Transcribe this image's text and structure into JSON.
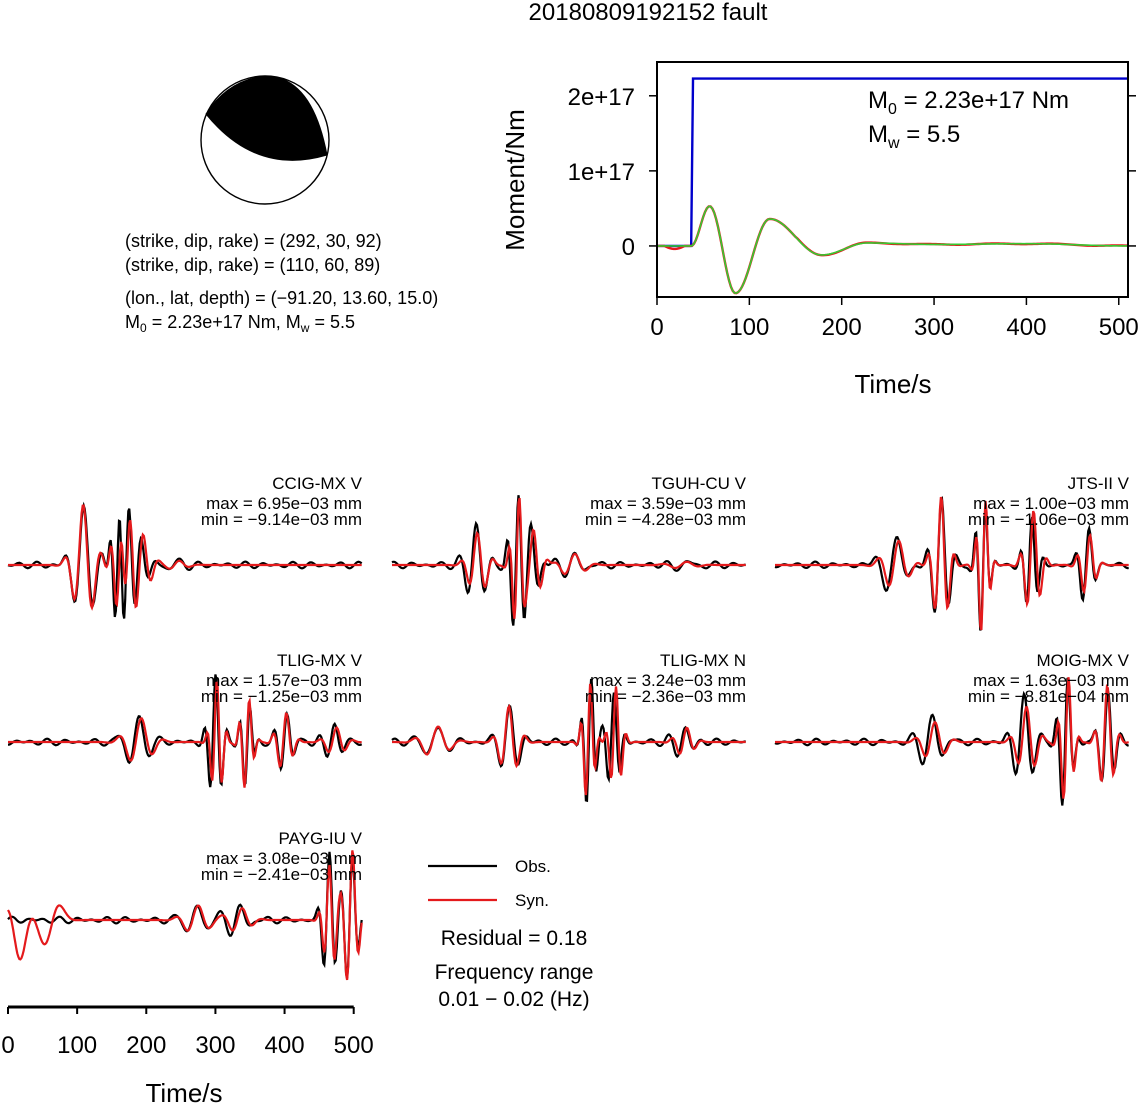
{
  "title": "20180809192152 fault",
  "focal": {
    "strike_dip_rake_1": "(strike, dip, rake) = (292, 30, 92)",
    "strike_dip_rake_2": "(strike, dip, rake) = (110, 60, 89)",
    "location": "(lon., lat, depth) = (−91.20, 13.60, 15.0)",
    "m0_prefix": "M",
    "m0_sub": "0",
    "m0_rest": " = 2.23e+17 Nm, M",
    "mw_sub": "w",
    "mw_rest": " = 5.5"
  },
  "colors": {
    "observed": "#000000",
    "synthetic": "#e41a1c",
    "moment": "#0000cc",
    "stf_red": "#e41a1c",
    "stf_green": "#33cc33"
  },
  "chart_data": [
    {
      "type": "line",
      "name": "moment_function",
      "xlabel": "Time/s",
      "ylabel": "Moment/Nm",
      "xlim": [
        0,
        510
      ],
      "ylim": [
        -6.8e+16,
        2.45e+17
      ],
      "xticks": [
        0,
        100,
        200,
        300,
        400,
        500
      ],
      "xtick_labels": [
        "0",
        "100",
        "200",
        "300",
        "400",
        "500"
      ],
      "yticks": [
        0,
        1e+17,
        2e+17
      ],
      "ytick_labels": [
        "0",
        "1e+17",
        "2e+17"
      ],
      "annotation": {
        "m0_prefix": "M",
        "m0_sub": "0",
        "m0_rest": " = 2.23e+17 Nm",
        "mw_prefix": "M",
        "mw_sub": "w",
        "mw_rest": " = 5.5"
      },
      "moment_step": {
        "onset_s": 37,
        "value": 2.23e+17
      },
      "rate_wavelet": {
        "t0": 37,
        "peaks": [
          [
            57,
            5.3e+16
          ],
          [
            85,
            -6.3e+16
          ],
          [
            122,
            3.6e+16
          ],
          [
            178,
            -1.2e+16
          ],
          [
            228,
            4000000000000000.0
          ],
          [
            300,
            2000000000000000.0
          ],
          [
            400,
            3000000000000000.0
          ]
        ]
      }
    },
    {
      "type": "line",
      "name": "waveforms",
      "xlabel": "Time/s",
      "xlim": [
        0,
        512
      ],
      "xticks": [
        0,
        100,
        200,
        300,
        400,
        500
      ],
      "xtick_labels": [
        "0",
        "100",
        "200",
        "300",
        "400",
        "500"
      ],
      "series_names": [
        "Obs.",
        "Syn."
      ],
      "stations": [
        {
          "name": "CCIG-MX V",
          "max": "max = 6.95e−03 mm",
          "min": "min = −9.14e−03 mm",
          "seed": 3,
          "wavelets": [
            [
              110,
              0.75,
              13,
              1.7
            ],
            [
              158,
              0.95,
              7,
              -0.3
            ],
            [
              172,
              0.8,
              9,
              0.5
            ],
            [
              190,
              0.35,
              11,
              1.0
            ],
            [
              240,
              0.06,
              16,
              0.2
            ]
          ]
        },
        {
          "name": "TGUH-CU V",
          "max": "max = 3.59e−03 mm",
          "min": "min = −4.28e−03 mm",
          "seed": 7,
          "wavelets": [
            [
              122,
              0.55,
              12,
              1.6
            ],
            [
              180,
              0.95,
              8,
              0.3
            ],
            [
              200,
              0.5,
              10,
              1.2
            ],
            [
              260,
              0.15,
              14,
              0.5
            ],
            [
              420,
              0.05,
              18,
              0.0
            ]
          ]
        },
        {
          "name": "JTS-II V",
          "max": "max = 1.00e−03 mm",
          "min": "min = −1.06e−03 mm",
          "seed": 11,
          "wavelets": [
            [
              170,
              0.4,
              16,
              0.3
            ],
            [
              240,
              0.9,
              10,
              1.3
            ],
            [
              300,
              0.95,
              7,
              -0.4
            ],
            [
              370,
              0.7,
              8,
              0.9
            ],
            [
              450,
              0.5,
              9,
              0.1
            ]
          ]
        },
        {
          "name": "TLIG-MX V",
          "max": "max = 1.57e−03 mm",
          "min": "min = −1.25e−03 mm",
          "seed": 5,
          "wavelets": [
            [
              185,
              0.35,
              14,
              0.6
            ],
            [
              300,
              0.95,
              8,
              1.4
            ],
            [
              345,
              0.6,
              7,
              -0.5
            ],
            [
              400,
              0.4,
              9,
              0.3
            ],
            [
              470,
              0.25,
              11,
              1.0
            ]
          ]
        },
        {
          "name": "TLIG-MX N",
          "max": "max = 3.24e−03 mm",
          "min": "min = −2.36e−03 mm",
          "seed": 13,
          "wavelets": [
            [
              60,
              0.2,
              16,
              0.5
            ],
            [
              170,
              0.45,
              12,
              1.5
            ],
            [
              285,
              0.95,
              7,
              0.1
            ],
            [
              320,
              0.7,
              8,
              1.2
            ],
            [
              420,
              0.2,
              12,
              0.4
            ]
          ]
        },
        {
          "name": "MOIG-MX V",
          "max": "max = 1.63e−03 mm",
          "min": "min = −8.81e−04 mm",
          "seed": 17,
          "wavelets": [
            [
              225,
              0.35,
              14,
              0.9
            ],
            [
              360,
              0.6,
              12,
              1.5
            ],
            [
              420,
              0.95,
              8,
              0.2
            ],
            [
              480,
              0.7,
              9,
              1.0
            ]
          ]
        },
        {
          "name": "PAYG-IU V",
          "max": "max = 3.08e−03 mm",
          "min": "min = −2.41e−03 mm",
          "seed": 19,
          "wavelets": [
            [
              270,
              0.2,
              14,
              0.8
            ],
            [
              330,
              0.2,
              14,
              0.2
            ],
            [
              465,
              0.9,
              8,
              1.6
            ],
            [
              495,
              0.9,
              8,
              0.3
            ]
          ]
        }
      ]
    }
  ],
  "legend": {
    "observed": "Obs.",
    "synthetic": "Syn."
  },
  "residual": "Residual = 0.18",
  "frequency_title": "Frequency range",
  "frequency_value": "0.01 − 0.02 (Hz)"
}
